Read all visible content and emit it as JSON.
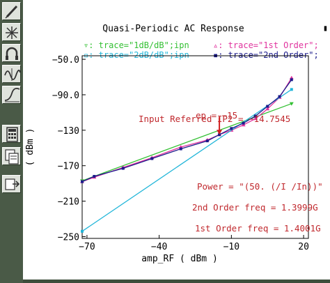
{
  "toolbar": {
    "buttons": [
      {
        "name": "probe-pen-icon"
      },
      {
        "name": "sparkle-tool-icon"
      },
      {
        "name": "headphones-icon"
      },
      {
        "name": "waveform-icon"
      },
      {
        "name": "curve-edit-icon"
      },
      {
        "name": "calculator-icon"
      },
      {
        "name": "results-browser-icon"
      },
      {
        "name": "export-icon"
      }
    ]
  },
  "scroll_marker": "▮",
  "chart_data": {
    "type": "line",
    "title": "Quasi-Periodic AC Response",
    "xlabel": "amp_RF ( dBm )",
    "ylabel": "( dBm )",
    "xlim": [
      -72,
      22
    ],
    "ylim": [
      -252,
      -46
    ],
    "x_ticks": [
      {
        "value": -70,
        "label": "−70"
      },
      {
        "value": -40,
        "label": "−40"
      },
      {
        "value": -10,
        "label": "−10"
      },
      {
        "value": 20,
        "label": "20"
      }
    ],
    "y_ticks": [
      {
        "value": -50,
        "label": "−50.0"
      },
      {
        "value": -90,
        "label": "−90.0"
      },
      {
        "value": -130,
        "label": "−130"
      },
      {
        "value": -170,
        "label": "−170"
      },
      {
        "value": -210,
        "label": "−210"
      },
      {
        "value": -250,
        "label": "−250"
      }
    ],
    "legend": {
      "placement": "top",
      "entries": [
        {
          "text": "▿: trace=\"1dB/dB\";ipn",
          "color": "#33c033"
        },
        {
          "text": "▵: trace=\"1st Order\";",
          "color": "#e0339e"
        },
        {
          "text": "▫: trace=\"2dB/dB\";ipn",
          "color": "#22b6d9"
        },
        {
          "text": "▪: trace=\"2nd Order\";",
          "color": "#1c1c8c"
        }
      ]
    },
    "series": [
      {
        "name": "1dB/dB",
        "color": "#33c033",
        "x": [
          -72,
          0,
          15
        ],
        "y": [
          -187,
          -115,
          -100
        ]
      },
      {
        "name": "1st Order",
        "color": "#e0339e",
        "x": [
          -72,
          -67,
          -55,
          -43,
          -31,
          -20,
          -15,
          -10,
          -5,
          0,
          5,
          10,
          15
        ],
        "y": [
          -188,
          -183,
          -172,
          -161,
          -149,
          -141,
          -135,
          -130,
          -124,
          -117,
          -106,
          -93,
          -71
        ]
      },
      {
        "name": "2dB/dB",
        "color": "#22b6d9",
        "x": [
          -72,
          15
        ],
        "y": [
          -244,
          -84
        ]
      },
      {
        "name": "2nd Order",
        "color": "#1c1c8c",
        "x": [
          -72,
          -67,
          -55,
          -43,
          -31,
          -20,
          -15,
          -10,
          -5,
          0,
          5,
          10,
          15
        ],
        "y": [
          -188,
          -182,
          -173,
          -162,
          -151,
          -142,
          -135,
          -128,
          -122,
          -114,
          -103,
          -92,
          -73
        ]
      }
    ],
    "annotations": [
      {
        "text": "ep = −15",
        "color": "#c0282d"
      },
      {
        "text": "Input Referred IP2 = −14.7545",
        "color": "#c0282d"
      },
      {
        "text": "Power = \"(50. (/I /In))\"",
        "color": "#c0282d"
      },
      {
        "text": "2nd Order freq = 1.3999G",
        "color": "#c0282d"
      },
      {
        "text": "1st Order freq = 1.4001G",
        "color": "#c0282d"
      }
    ],
    "marker_arrow": {
      "x": -15,
      "y_from": -115,
      "y_to": -135,
      "color": "#d12020"
    }
  }
}
